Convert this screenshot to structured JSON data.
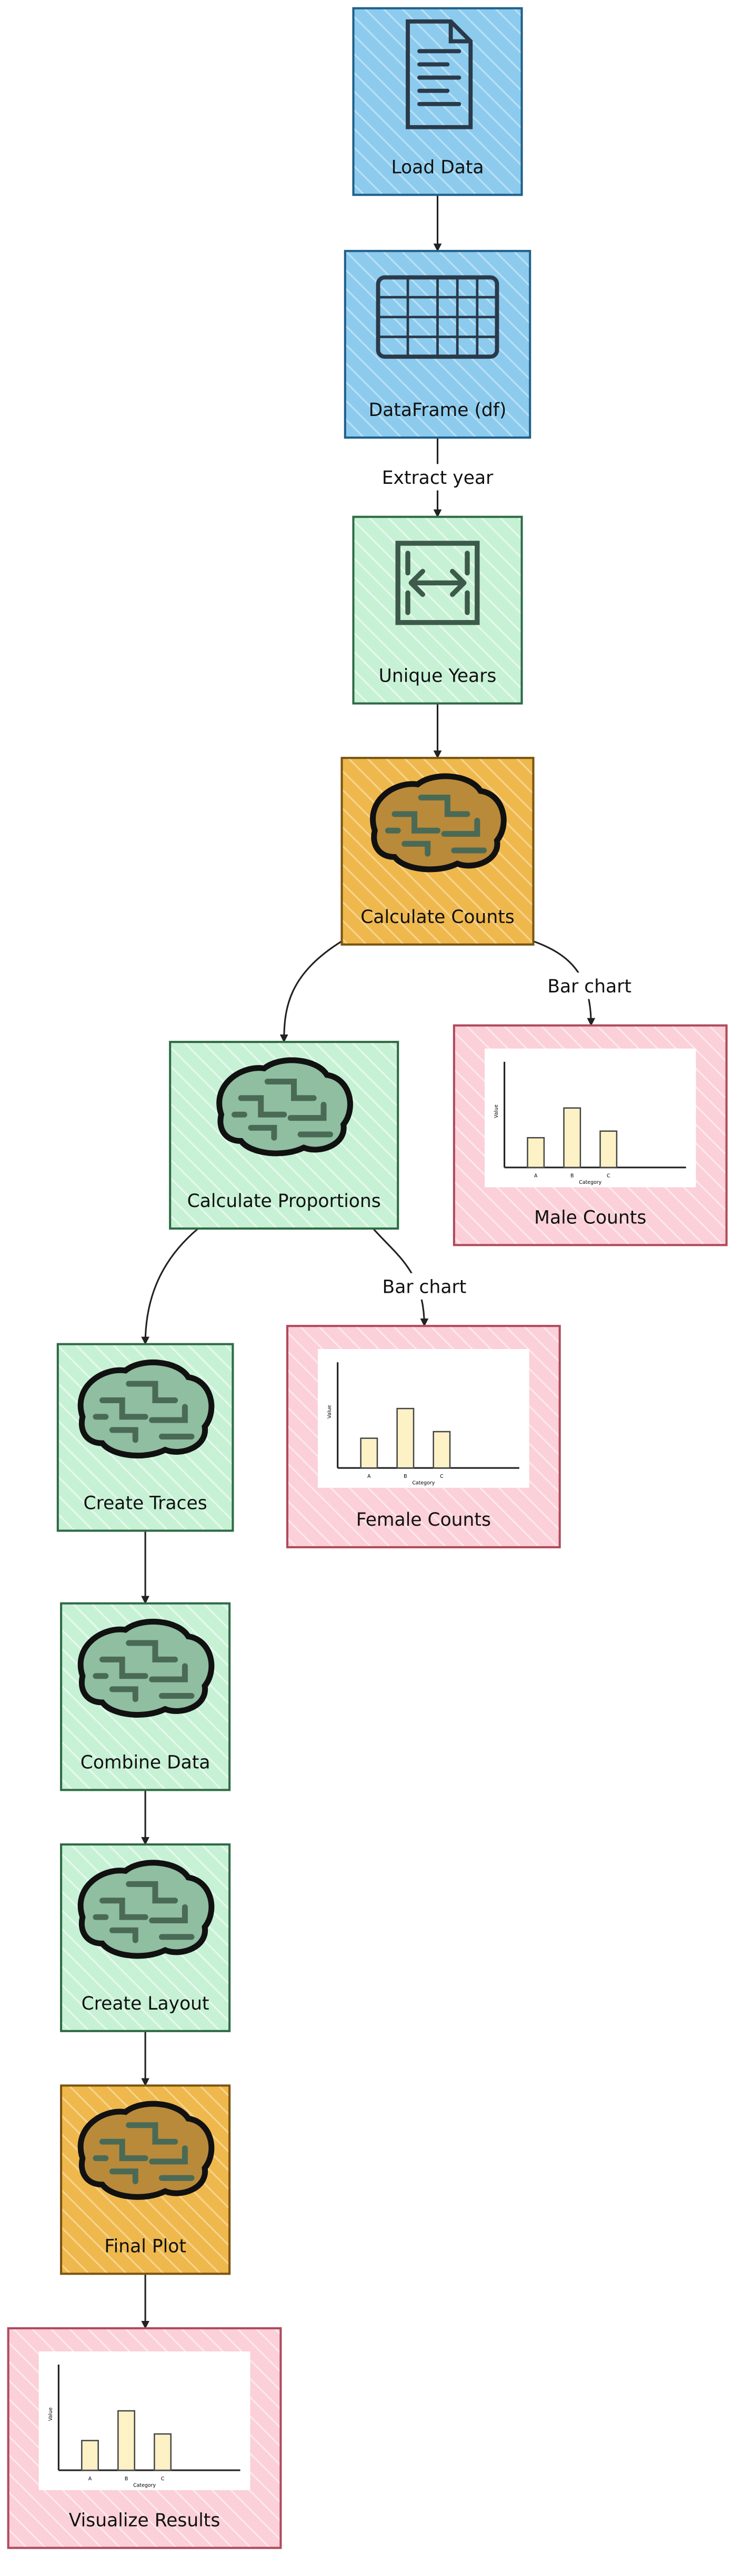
{
  "nodes": [
    {
      "label": "Load Data"
    },
    {
      "label": "DataFrame (df)"
    },
    {
      "label": "Unique Years"
    },
    {
      "label": "Calculate Counts"
    },
    {
      "label": "Calculate Proportions"
    },
    {
      "label": "Male Counts"
    },
    {
      "label": "Create Traces"
    },
    {
      "label": "Female Counts"
    },
    {
      "label": "Combine Data"
    },
    {
      "label": "Create Layout"
    },
    {
      "label": "Final Plot"
    },
    {
      "label": "Visualize Results"
    }
  ],
  "edges": [
    {
      "label": "Extract year"
    },
    {
      "label": "Bar chart"
    },
    {
      "label": "Bar chart"
    }
  ],
  "chart_icon": {
    "y_label": "Value",
    "x_label": "Category",
    "categories": [
      "A",
      "B",
      "C"
    ]
  }
}
